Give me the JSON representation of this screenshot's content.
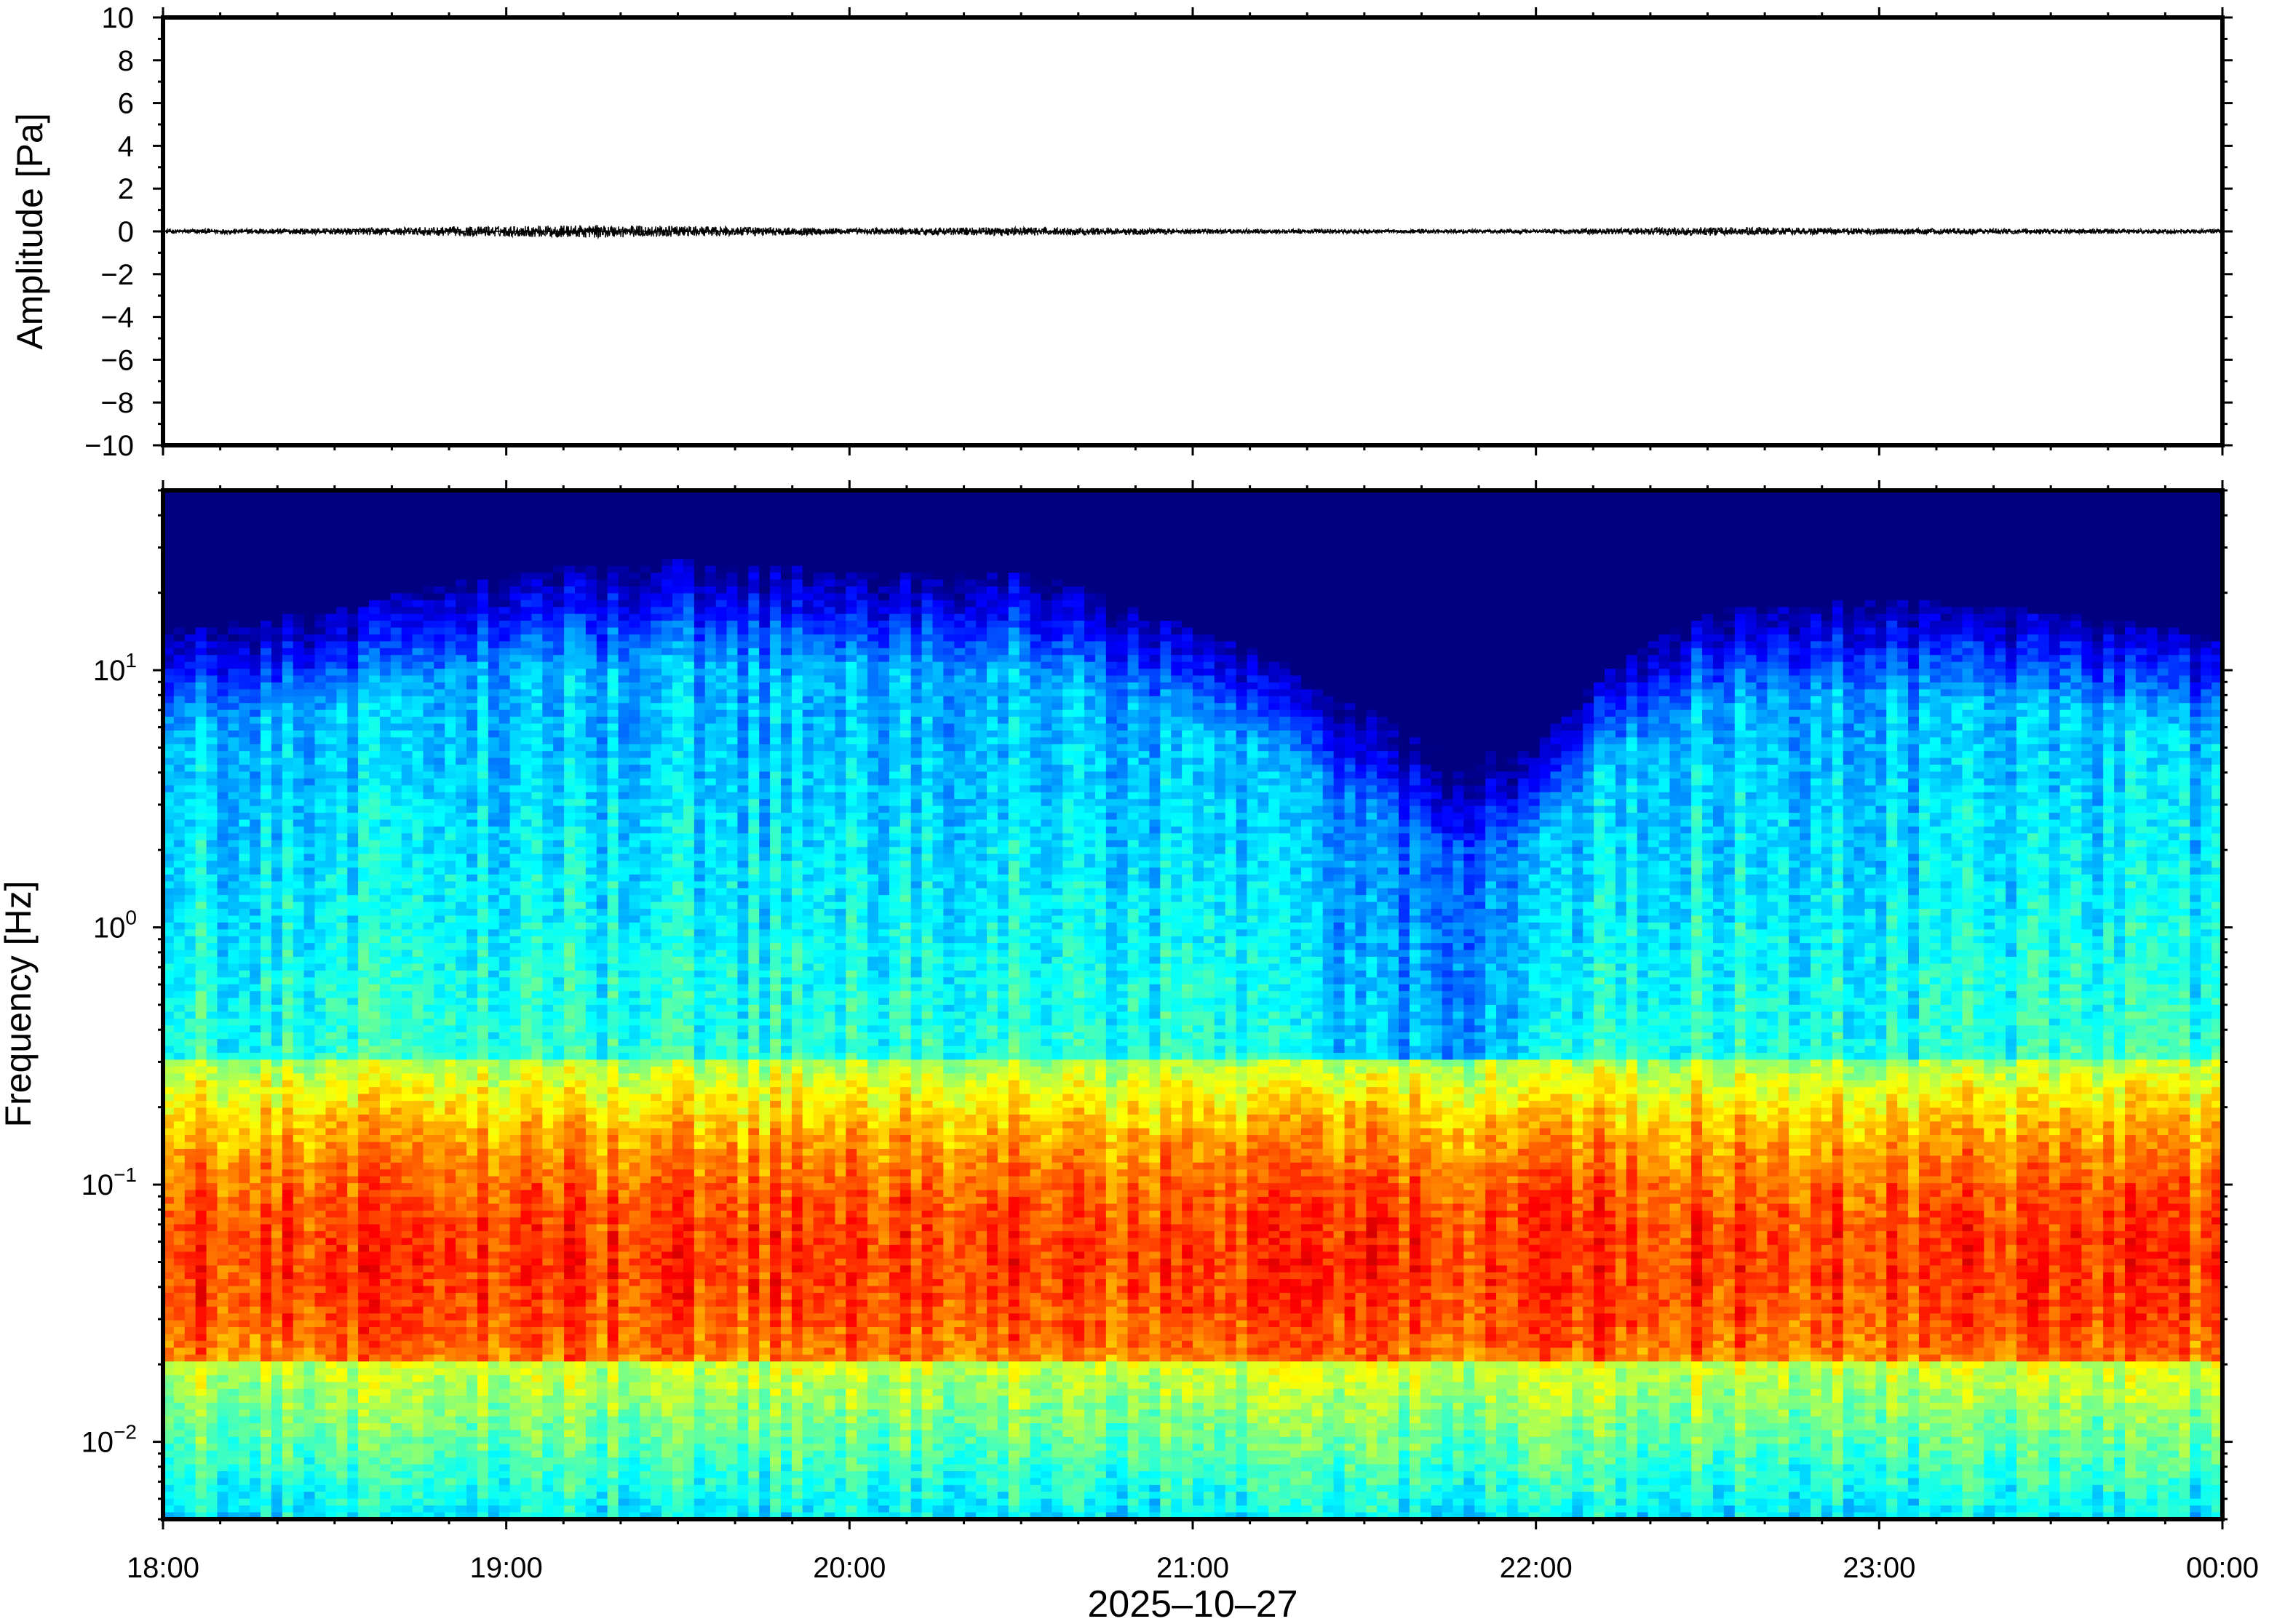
{
  "chart_data": [
    {
      "type": "line",
      "title": "",
      "ylabel": "Amplitude [Pa]",
      "ylim": [
        -10,
        10
      ],
      "yticks": [
        10,
        8,
        6,
        4,
        2,
        0,
        -2,
        -4,
        -6,
        -8,
        -10
      ],
      "ytick_labels": [
        "10",
        "8",
        "6",
        "4",
        "2",
        "0",
        "−2",
        "−4",
        "−6",
        "−8",
        "−10"
      ],
      "xlim": [
        "18:00",
        "00:00"
      ],
      "series": [
        {
          "color": "#000000",
          "x_hours": [
            18.0,
            18.5,
            19.0,
            19.25,
            19.5,
            20.0,
            20.5,
            21.0,
            21.5,
            22.0,
            22.5,
            23.0,
            23.5,
            24.0
          ],
          "envelope_pa": [
            0.1,
            0.15,
            0.25,
            0.3,
            0.25,
            0.15,
            0.2,
            0.12,
            0.1,
            0.1,
            0.2,
            0.15,
            0.12,
            0.1
          ]
        }
      ]
    },
    {
      "type": "heatmap",
      "title": "",
      "ylabel": "Frequency [Hz]",
      "xlabel": "2025–10–27",
      "yscale": "log",
      "ylim": [
        0.005,
        50
      ],
      "ytick_values": [
        10,
        1,
        0.1,
        0.01
      ],
      "ytick_labels": [
        {
          "base": "10",
          "exp": "1"
        },
        {
          "base": "10",
          "exp": "0"
        },
        {
          "base": "10",
          "exp": "−1"
        },
        {
          "base": "10",
          "exp": "−2"
        }
      ],
      "xtick_values_hours": [
        18,
        19,
        20,
        21,
        22,
        23,
        24
      ],
      "xtick_labels": [
        "18:00",
        "19:00",
        "20:00",
        "21:00",
        "22:00",
        "23:00",
        "00:00"
      ],
      "colormap": "jet",
      "colors": {
        "low": "#0a0a6e",
        "mid": "#5fdcc8",
        "high": "#f5a050"
      },
      "description": "Energy peaks near 0.05 Hz; high frequencies become dark blue above ~10 Hz; quieter band 21:00–22:15",
      "upper_cutoff_hz": [
        [
          18.0,
          12
        ],
        [
          18.5,
          14
        ],
        [
          19.0,
          20
        ],
        [
          19.5,
          22
        ],
        [
          20.0,
          20
        ],
        [
          20.5,
          20
        ],
        [
          21.0,
          12
        ],
        [
          21.5,
          6
        ],
        [
          21.75,
          4
        ],
        [
          22.0,
          4
        ],
        [
          22.25,
          9
        ],
        [
          22.5,
          14
        ],
        [
          23.0,
          16
        ],
        [
          23.5,
          14
        ],
        [
          24.0,
          11
        ]
      ],
      "quiet_band_hours": [
        21.1,
        22.25
      ]
    }
  ]
}
